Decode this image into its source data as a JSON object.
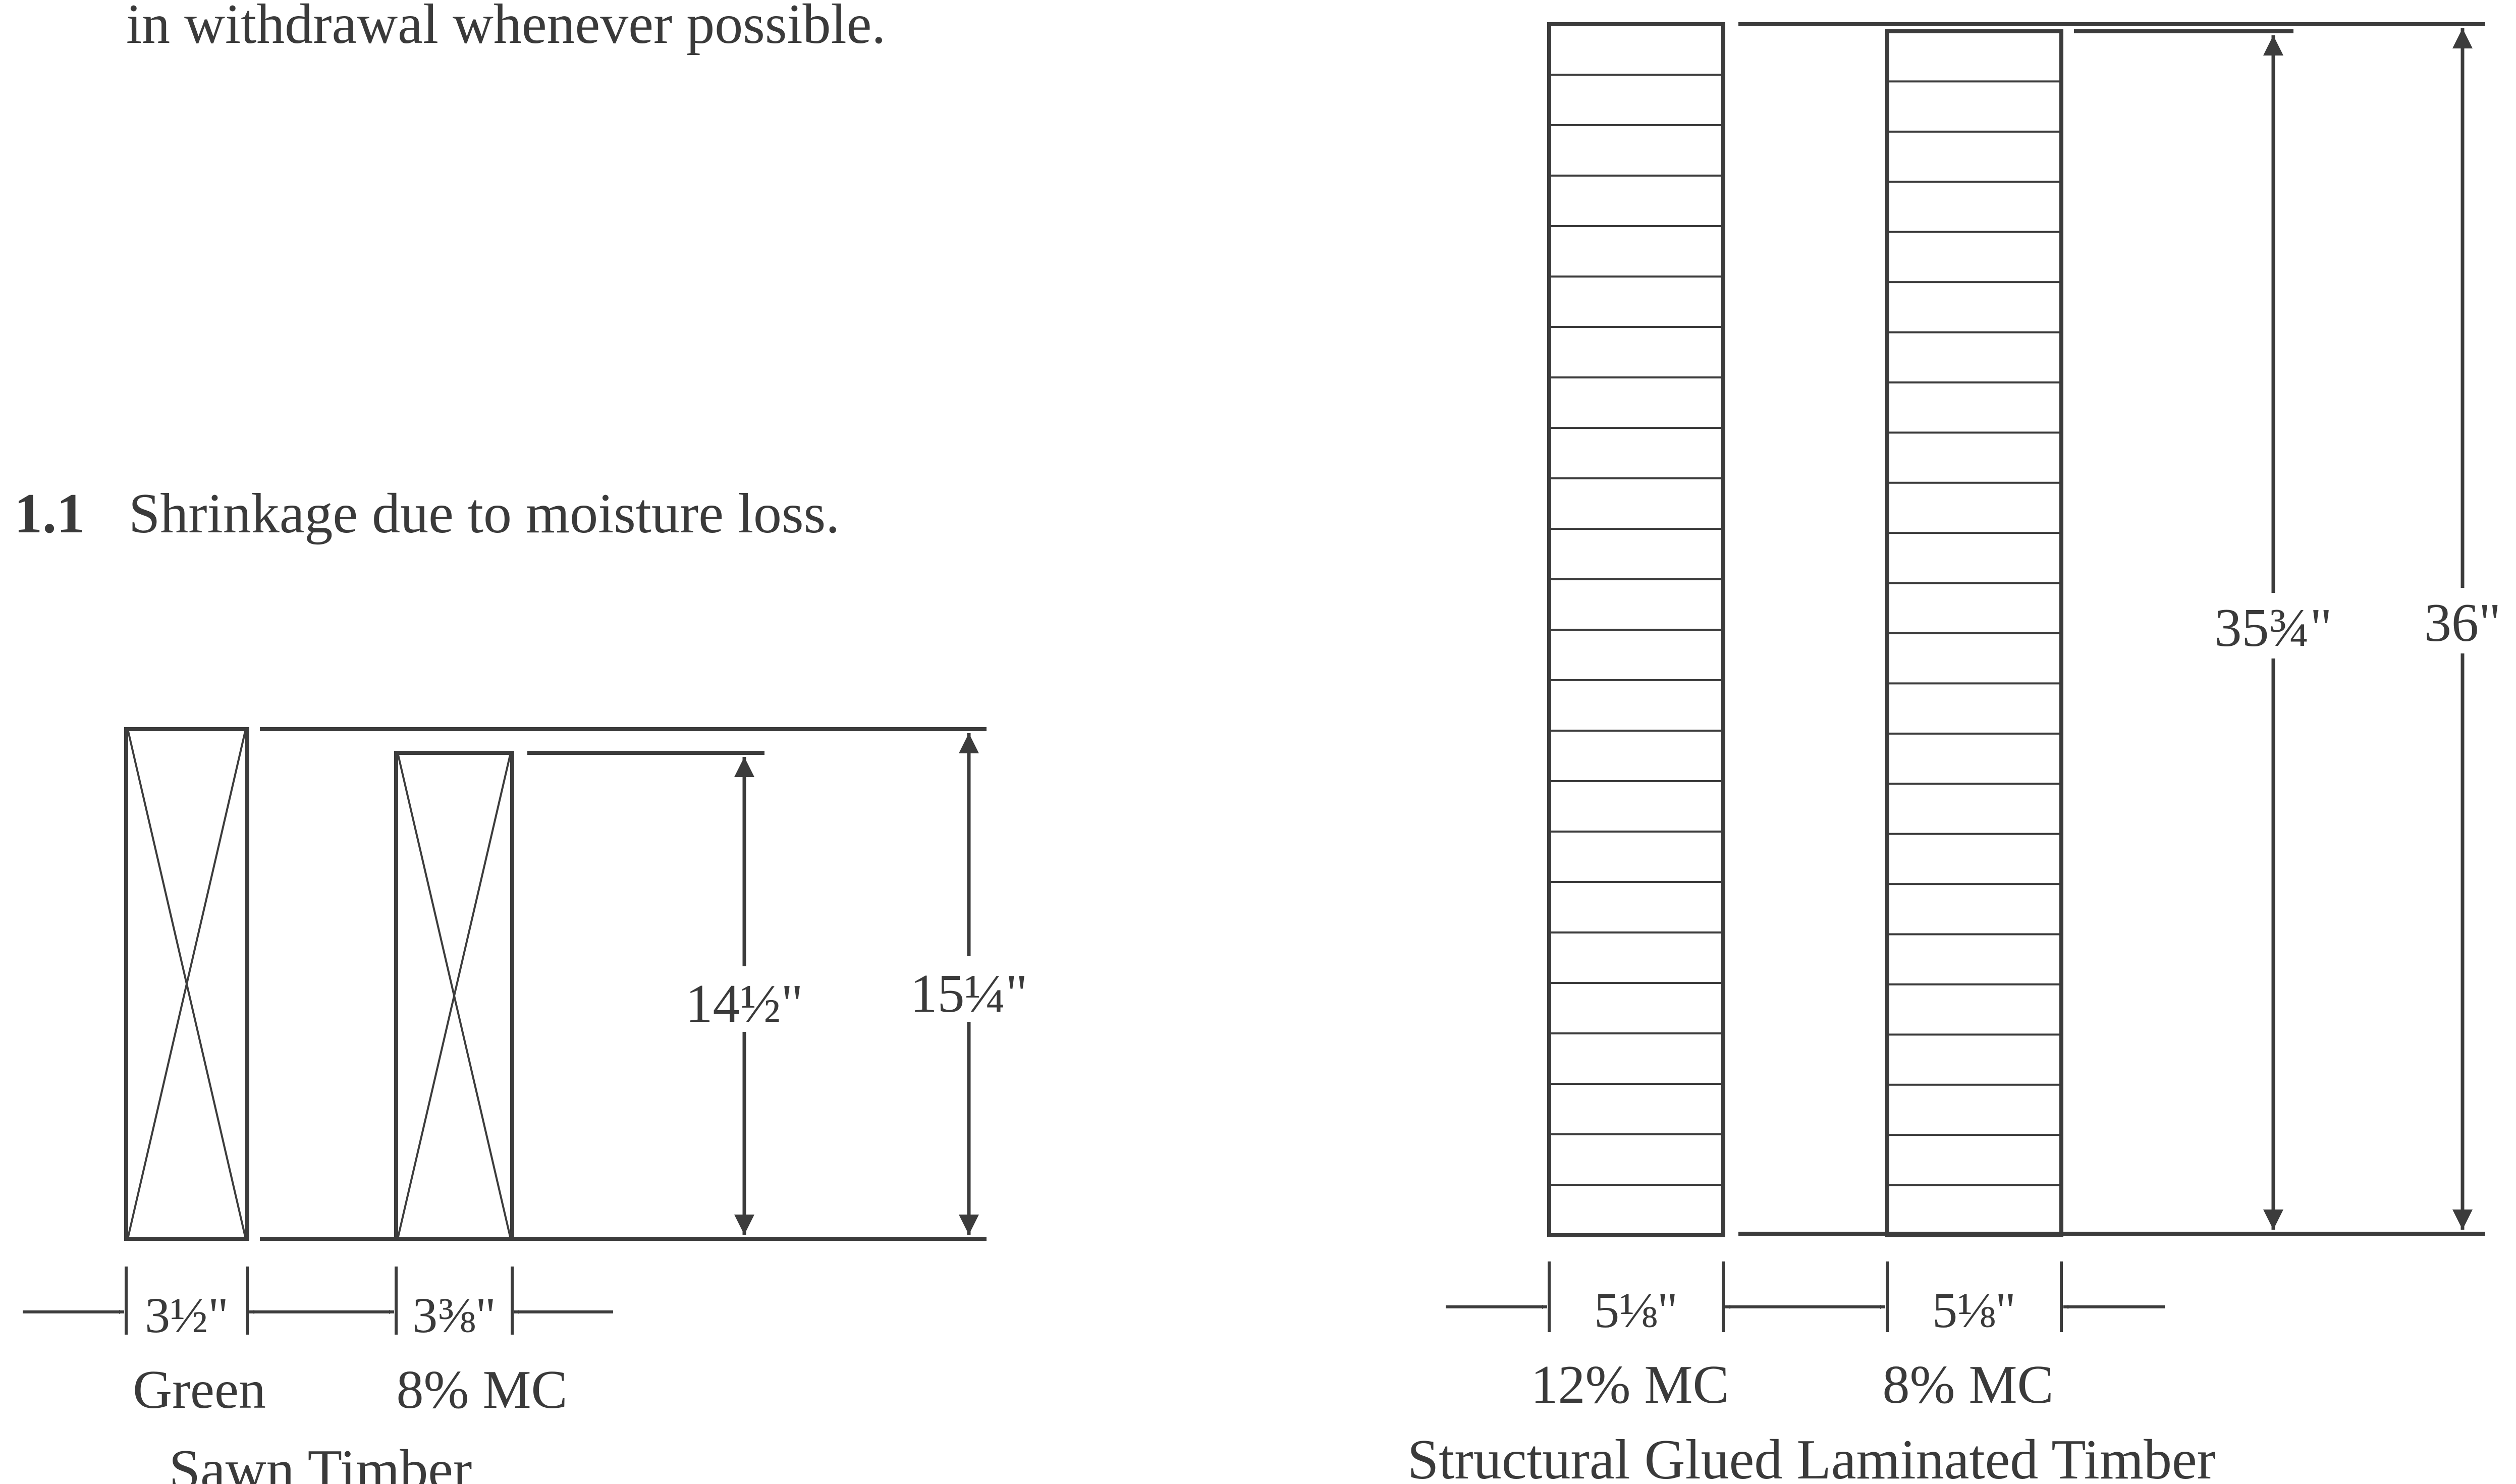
{
  "intro_text": "in withdrawal whenever possible.",
  "section": {
    "number": "1.1",
    "title": "Shrinkage due to moisture loss."
  },
  "sawn_timber": {
    "caption": "Sawn Timber",
    "green": {
      "width_label": "3½\"",
      "label": "Green",
      "height_label": "15¼\""
    },
    "dry": {
      "width_label": "3⅜\"",
      "label": "8% MC",
      "height_label": "14½\""
    }
  },
  "glulam": {
    "caption": "Structural Glued Laminated Timber",
    "wet": {
      "width_label": "5⅛\"",
      "label": "12% MC",
      "height_label": "36\""
    },
    "dry": {
      "width_label": "5⅛\"",
      "label": "8% MC",
      "height_label": "35¾\""
    },
    "lamination_count": 24
  }
}
